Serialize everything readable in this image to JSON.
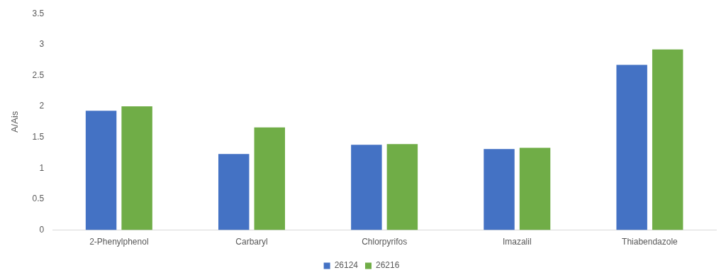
{
  "chart_data": {
    "type": "bar",
    "ylabel": "A/Ais",
    "categories": [
      "2-Phenylphenol",
      "Carbaryl",
      "Chlorpyrifos",
      "Imazalil",
      "Thiabendazole"
    ],
    "series": [
      {
        "name": "26124",
        "color": "#4472c4",
        "values": [
          1.93,
          1.23,
          1.38,
          1.31,
          2.67
        ]
      },
      {
        "name": "26216",
        "color": "#70ad47",
        "values": [
          2.0,
          1.66,
          1.39,
          1.33,
          2.92
        ]
      }
    ],
    "ylim": [
      0,
      3.5
    ],
    "yticks": [
      0,
      0.5,
      1,
      1.5,
      2,
      2.5,
      3,
      3.5
    ],
    "grid": false,
    "legend": "bottom"
  }
}
